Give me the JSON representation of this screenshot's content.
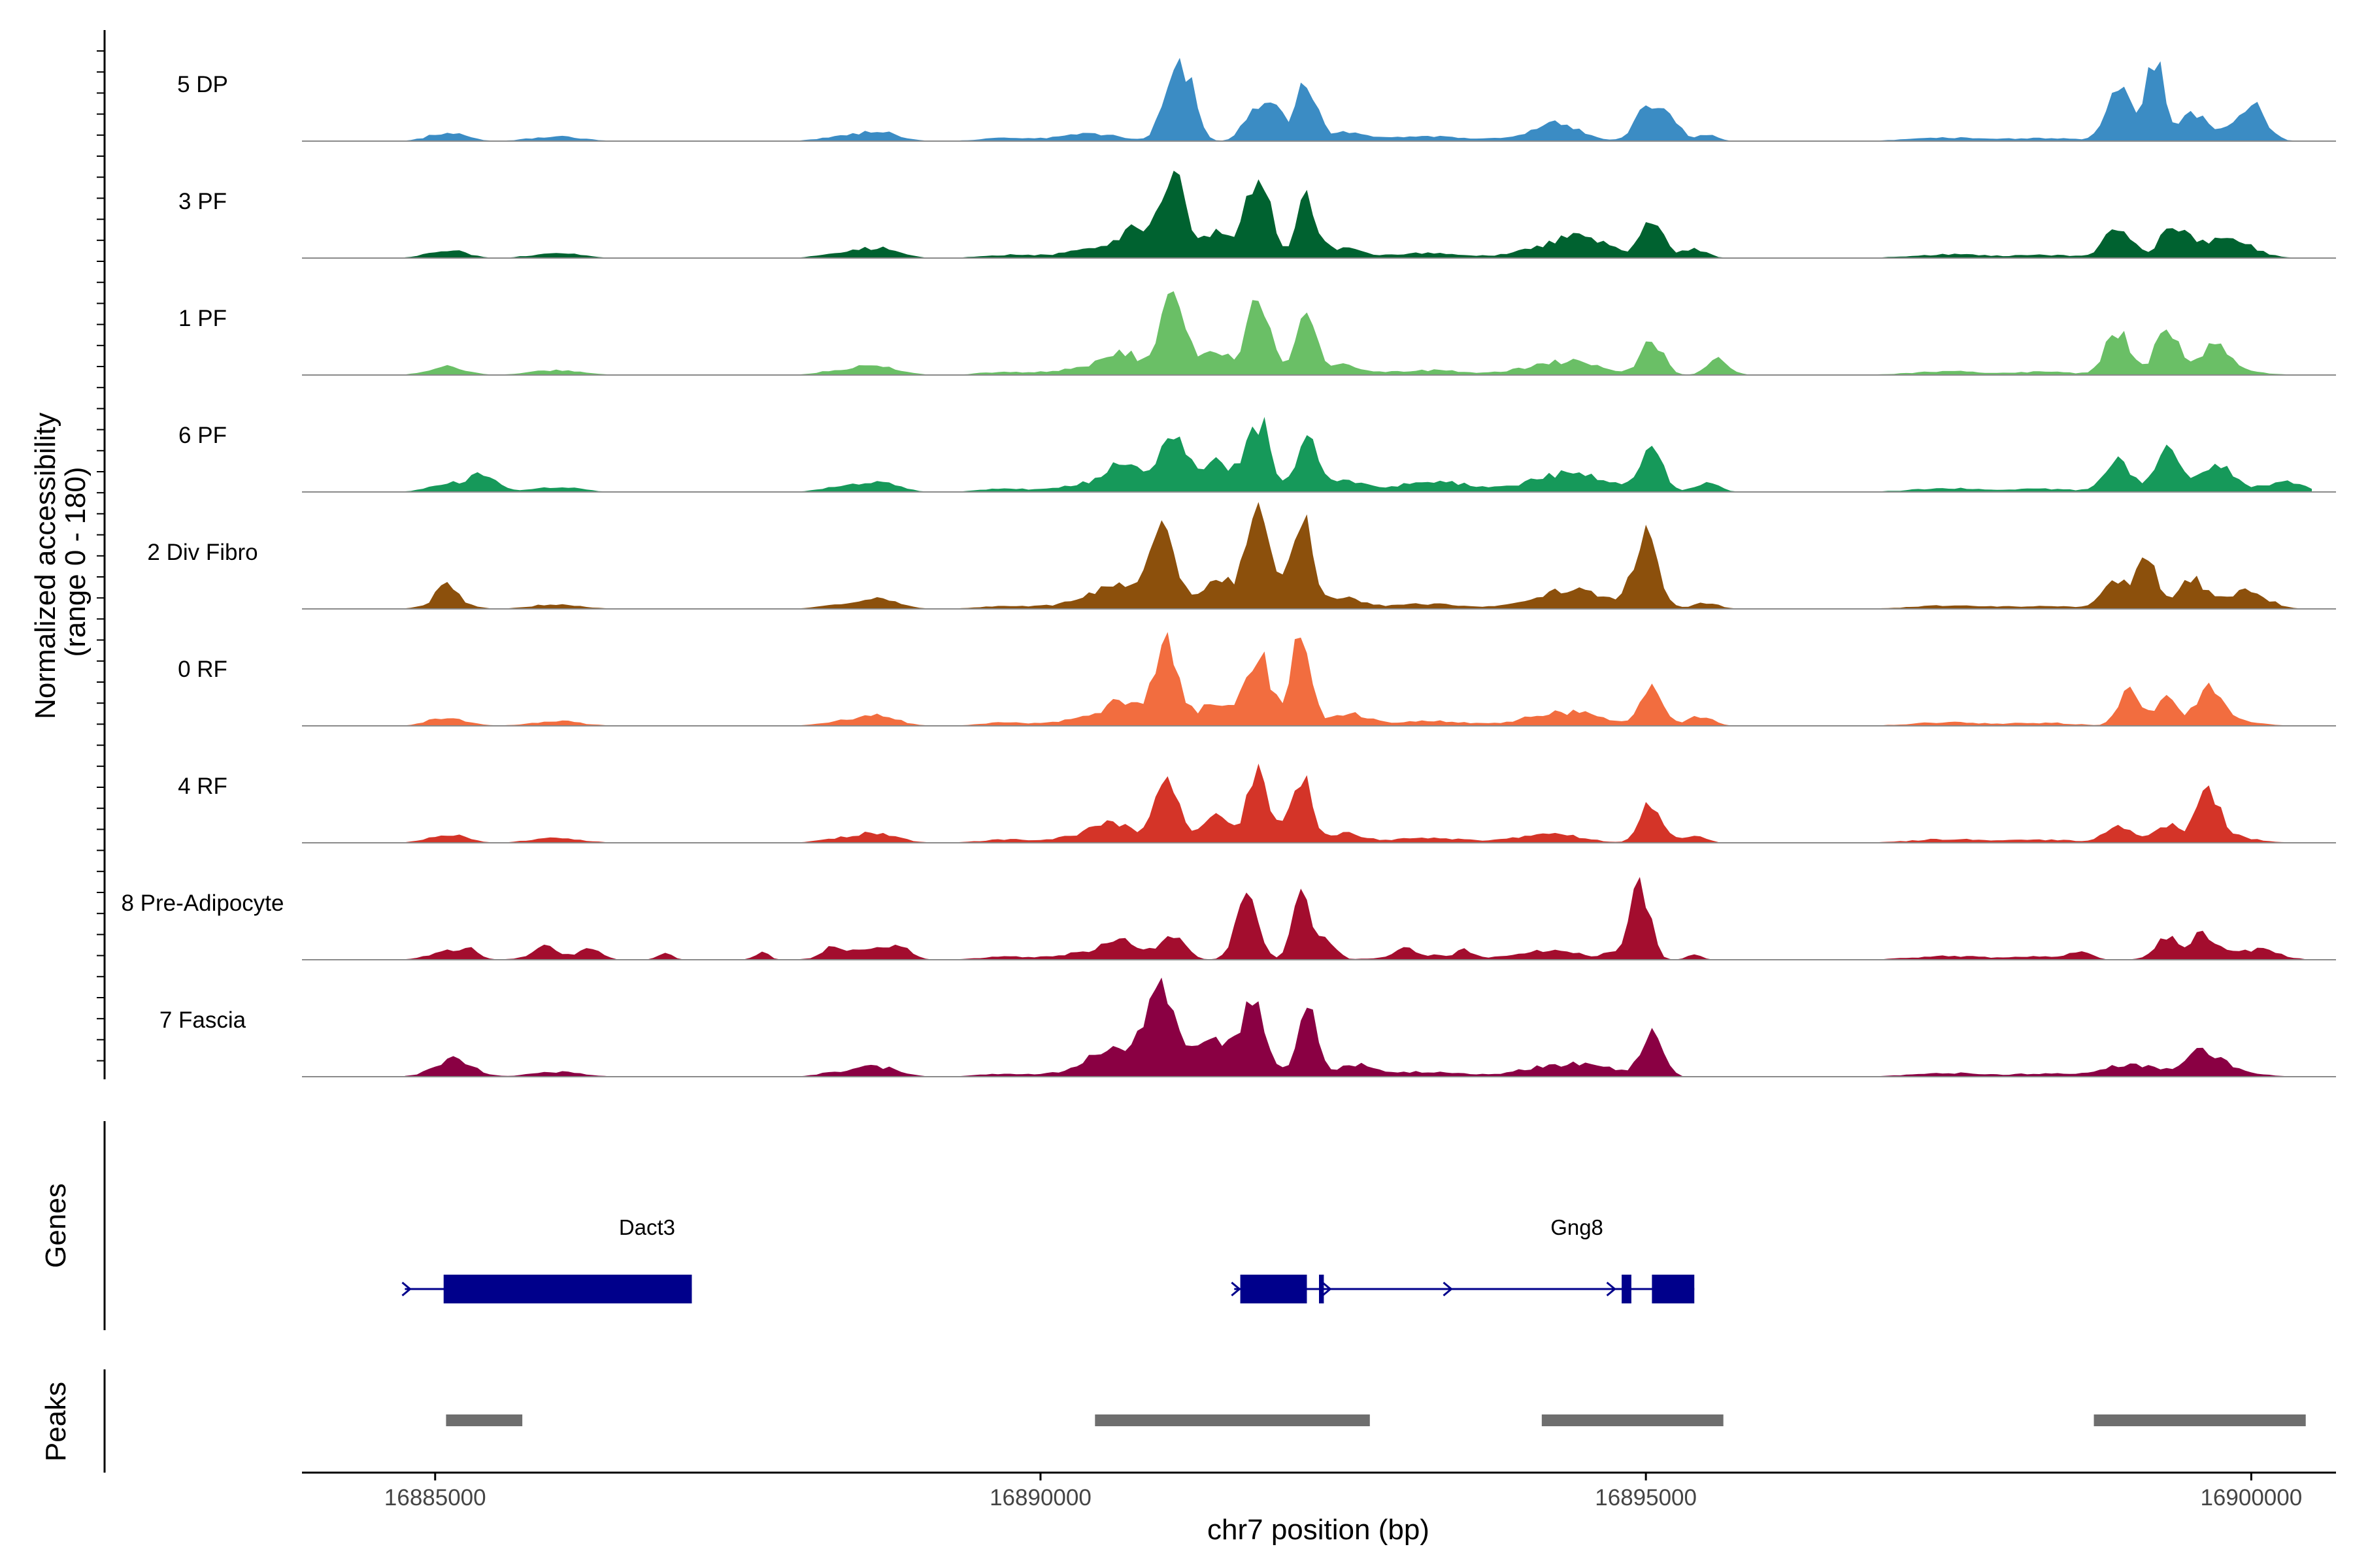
{
  "chart_data": {
    "type": "area",
    "title": "",
    "xlabel": "chr7 position (bp)",
    "ylabel": "Normalized accessibility\n(range 0 - 180)",
    "ylim": [
      0,
      180
    ],
    "xlim": [
      16883900,
      16900700
    ],
    "xticks": [
      16885000,
      16890000,
      16895000,
      16900000
    ],
    "panel_titles": {
      "genes": "Genes",
      "peaks": "Peaks"
    },
    "data_start": 16884750,
    "data_end": 16900500,
    "step": 50,
    "background": [
      [
        16885100,
        14,
        150
      ],
      [
        16886000,
        8,
        200
      ],
      [
        16888650,
        16,
        170
      ],
      [
        16888300,
        6,
        150
      ],
      [
        16889700,
        5,
        200
      ],
      [
        16890400,
        12,
        250
      ],
      [
        16893200,
        8,
        300
      ],
      [
        16894200,
        16,
        250
      ],
      [
        16897500,
        6,
        300
      ],
      [
        16898300,
        5,
        250
      ],
      [
        16899700,
        14,
        250
      ]
    ],
    "tracks": [
      {
        "name": "5 DP",
        "color": "#3b8cc4",
        "peaks": [
          [
            16891100,
            115,
            90
          ],
          [
            16891250,
            65,
            70
          ],
          [
            16891720,
            35,
            80
          ],
          [
            16891900,
            75,
            90
          ],
          [
            16892200,
            95,
            80
          ],
          [
            16892550,
            15,
            150
          ],
          [
            16894300,
            18,
            120
          ],
          [
            16895000,
            50,
            90
          ],
          [
            16895200,
            40,
            80
          ],
          [
            16895500,
            12,
            80
          ],
          [
            16898900,
            85,
            100
          ],
          [
            16899200,
            130,
            80
          ],
          [
            16899500,
            40,
            90
          ],
          [
            16900000,
            55,
            110
          ]
        ]
      },
      {
        "name": "3 PF",
        "color": "#006230",
        "peaks": [
          [
            16891100,
            130,
            100
          ],
          [
            16890800,
            45,
            160
          ],
          [
            16891800,
            130,
            100
          ],
          [
            16892200,
            95,
            80
          ],
          [
            16891450,
            40,
            120
          ],
          [
            16892500,
            15,
            150
          ],
          [
            16894500,
            30,
            200
          ],
          [
            16895050,
            65,
            90
          ],
          [
            16895400,
            15,
            100
          ],
          [
            16898900,
            50,
            110
          ],
          [
            16899350,
            50,
            100
          ],
          [
            16899800,
            20,
            200
          ]
        ]
      },
      {
        "name": "1 PF",
        "color": "#6abf66",
        "peaks": [
          [
            16891100,
            125,
            100
          ],
          [
            16890700,
            30,
            150
          ],
          [
            16891800,
            115,
            100
          ],
          [
            16892200,
            100,
            80
          ],
          [
            16891450,
            35,
            120
          ],
          [
            16892500,
            15,
            150
          ],
          [
            16895050,
            55,
            90
          ],
          [
            16895600,
            25,
            90
          ],
          [
            16894500,
            12,
            200
          ],
          [
            16898900,
            75,
            100
          ],
          [
            16899300,
            75,
            90
          ],
          [
            16899700,
            35,
            100
          ]
        ]
      },
      {
        "name": "6 PF",
        "color": "#16995a",
        "peaks": [
          [
            16891100,
            105,
            110
          ],
          [
            16890700,
            40,
            150
          ],
          [
            16891800,
            115,
            100
          ],
          [
            16892200,
            90,
            80
          ],
          [
            16891450,
            50,
            120
          ],
          [
            16892500,
            20,
            150
          ],
          [
            16893300,
            10,
            300
          ],
          [
            16895050,
            75,
            90
          ],
          [
            16894500,
            20,
            250
          ],
          [
            16895500,
            15,
            100
          ],
          [
            16884450,
            0,
            100
          ],
          [
            16885400,
            25,
            120
          ],
          [
            16898900,
            50,
            110
          ],
          [
            16899300,
            65,
            90
          ],
          [
            16899700,
            35,
            110
          ],
          [
            16900300,
            15,
            150
          ]
        ]
      },
      {
        "name": "2 Div Fibro",
        "color": "#8c500c",
        "peaks": [
          [
            16891000,
            150,
            110
          ],
          [
            16890600,
            30,
            150
          ],
          [
            16891800,
            150,
            110
          ],
          [
            16892150,
            160,
            80
          ],
          [
            16891450,
            45,
            120
          ],
          [
            16892500,
            20,
            150
          ],
          [
            16895000,
            115,
            100
          ],
          [
            16894500,
            20,
            250
          ],
          [
            16895500,
            10,
            100
          ],
          [
            16885100,
            25,
            80
          ],
          [
            16898900,
            45,
            120
          ],
          [
            16899150,
            75,
            80
          ],
          [
            16899500,
            40,
            100
          ],
          [
            16900000,
            20,
            150
          ]
        ]
      },
      {
        "name": "0 RF",
        "color": "#f26d3f",
        "peaks": [
          [
            16891050,
            130,
            100
          ],
          [
            16890700,
            35,
            150
          ],
          [
            16891800,
            120,
            100
          ],
          [
            16892150,
            140,
            80
          ],
          [
            16891450,
            40,
            120
          ],
          [
            16892550,
            20,
            150
          ],
          [
            16895050,
            75,
            90
          ],
          [
            16895450,
            15,
            100
          ],
          [
            16894500,
            12,
            200
          ],
          [
            16899000,
            55,
            90
          ],
          [
            16899300,
            40,
            80
          ],
          [
            16899650,
            45,
            100
          ]
        ]
      },
      {
        "name": "4 RF",
        "color": "#d43428",
        "peaks": [
          [
            16891050,
            110,
            100
          ],
          [
            16890600,
            25,
            150
          ],
          [
            16891800,
            120,
            90
          ],
          [
            16892150,
            115,
            80
          ],
          [
            16891450,
            40,
            120
          ],
          [
            16892500,
            15,
            150
          ],
          [
            16895050,
            65,
            90
          ],
          [
            16895400,
            10,
            100
          ],
          [
            16898900,
            25,
            110
          ],
          [
            16899300,
            25,
            100
          ],
          [
            16899650,
            75,
            90
          ]
        ]
      },
      {
        "name": "8 Pre-Adipocyte",
        "color": "#a30d2e",
        "peaks": [
          [
            16891700,
            100,
            90
          ],
          [
            16892150,
            115,
            70
          ],
          [
            16890700,
            25,
            150
          ],
          [
            16891100,
            35,
            100
          ],
          [
            16892350,
            35,
            80
          ],
          [
            16894950,
            125,
            80
          ],
          [
            16895400,
            10,
            60
          ],
          [
            16894700,
            10,
            60
          ],
          [
            16885300,
            15,
            60
          ],
          [
            16885900,
            15,
            80
          ],
          [
            16886300,
            18,
            80
          ],
          [
            16886900,
            10,
            60
          ],
          [
            16887700,
            12,
            60
          ],
          [
            16888300,
            15,
            80
          ],
          [
            16888850,
            15,
            80
          ],
          [
            16893000,
            15,
            60
          ],
          [
            16893500,
            12,
            60
          ],
          [
            16898600,
            12,
            80
          ],
          [
            16899300,
            30,
            100
          ],
          [
            16899600,
            30,
            80
          ],
          [
            16900100,
            12,
            150
          ]
        ]
      },
      {
        "name": "7 Fascia",
        "color": "#8a0043",
        "peaks": [
          [
            16891000,
            130,
            130
          ],
          [
            16890600,
            40,
            160
          ],
          [
            16891750,
            120,
            110
          ],
          [
            16892200,
            110,
            80
          ],
          [
            16891400,
            55,
            130
          ],
          [
            16892600,
            20,
            150
          ],
          [
            16895050,
            65,
            90
          ],
          [
            16894600,
            15,
            200
          ],
          [
            16885200,
            15,
            150
          ],
          [
            16899000,
            20,
            200
          ],
          [
            16899600,
            30,
            130
          ]
        ]
      }
    ],
    "genes": [
      {
        "name": "Dact3",
        "start": 16884750,
        "end": 16887120,
        "strand": "+",
        "exons": [
          [
            16885070,
            16887120
          ]
        ],
        "arrows": [
          16884750
        ]
      },
      {
        "name": "Gng8",
        "start": 16891600,
        "end": 16895400,
        "strand": "+",
        "exons": [
          [
            16891650,
            16892200
          ],
          [
            16892300,
            16892340
          ],
          [
            16894800,
            16894880
          ],
          [
            16895050,
            16895400
          ]
        ],
        "arrows": [
          16891600,
          16892350,
          16893350,
          16894700
        ]
      }
    ],
    "peaks": [
      [
        16885090,
        16885720
      ],
      [
        16890450,
        16892720
      ],
      [
        16894140,
        16895640
      ],
      [
        16898700,
        16900450
      ]
    ]
  }
}
